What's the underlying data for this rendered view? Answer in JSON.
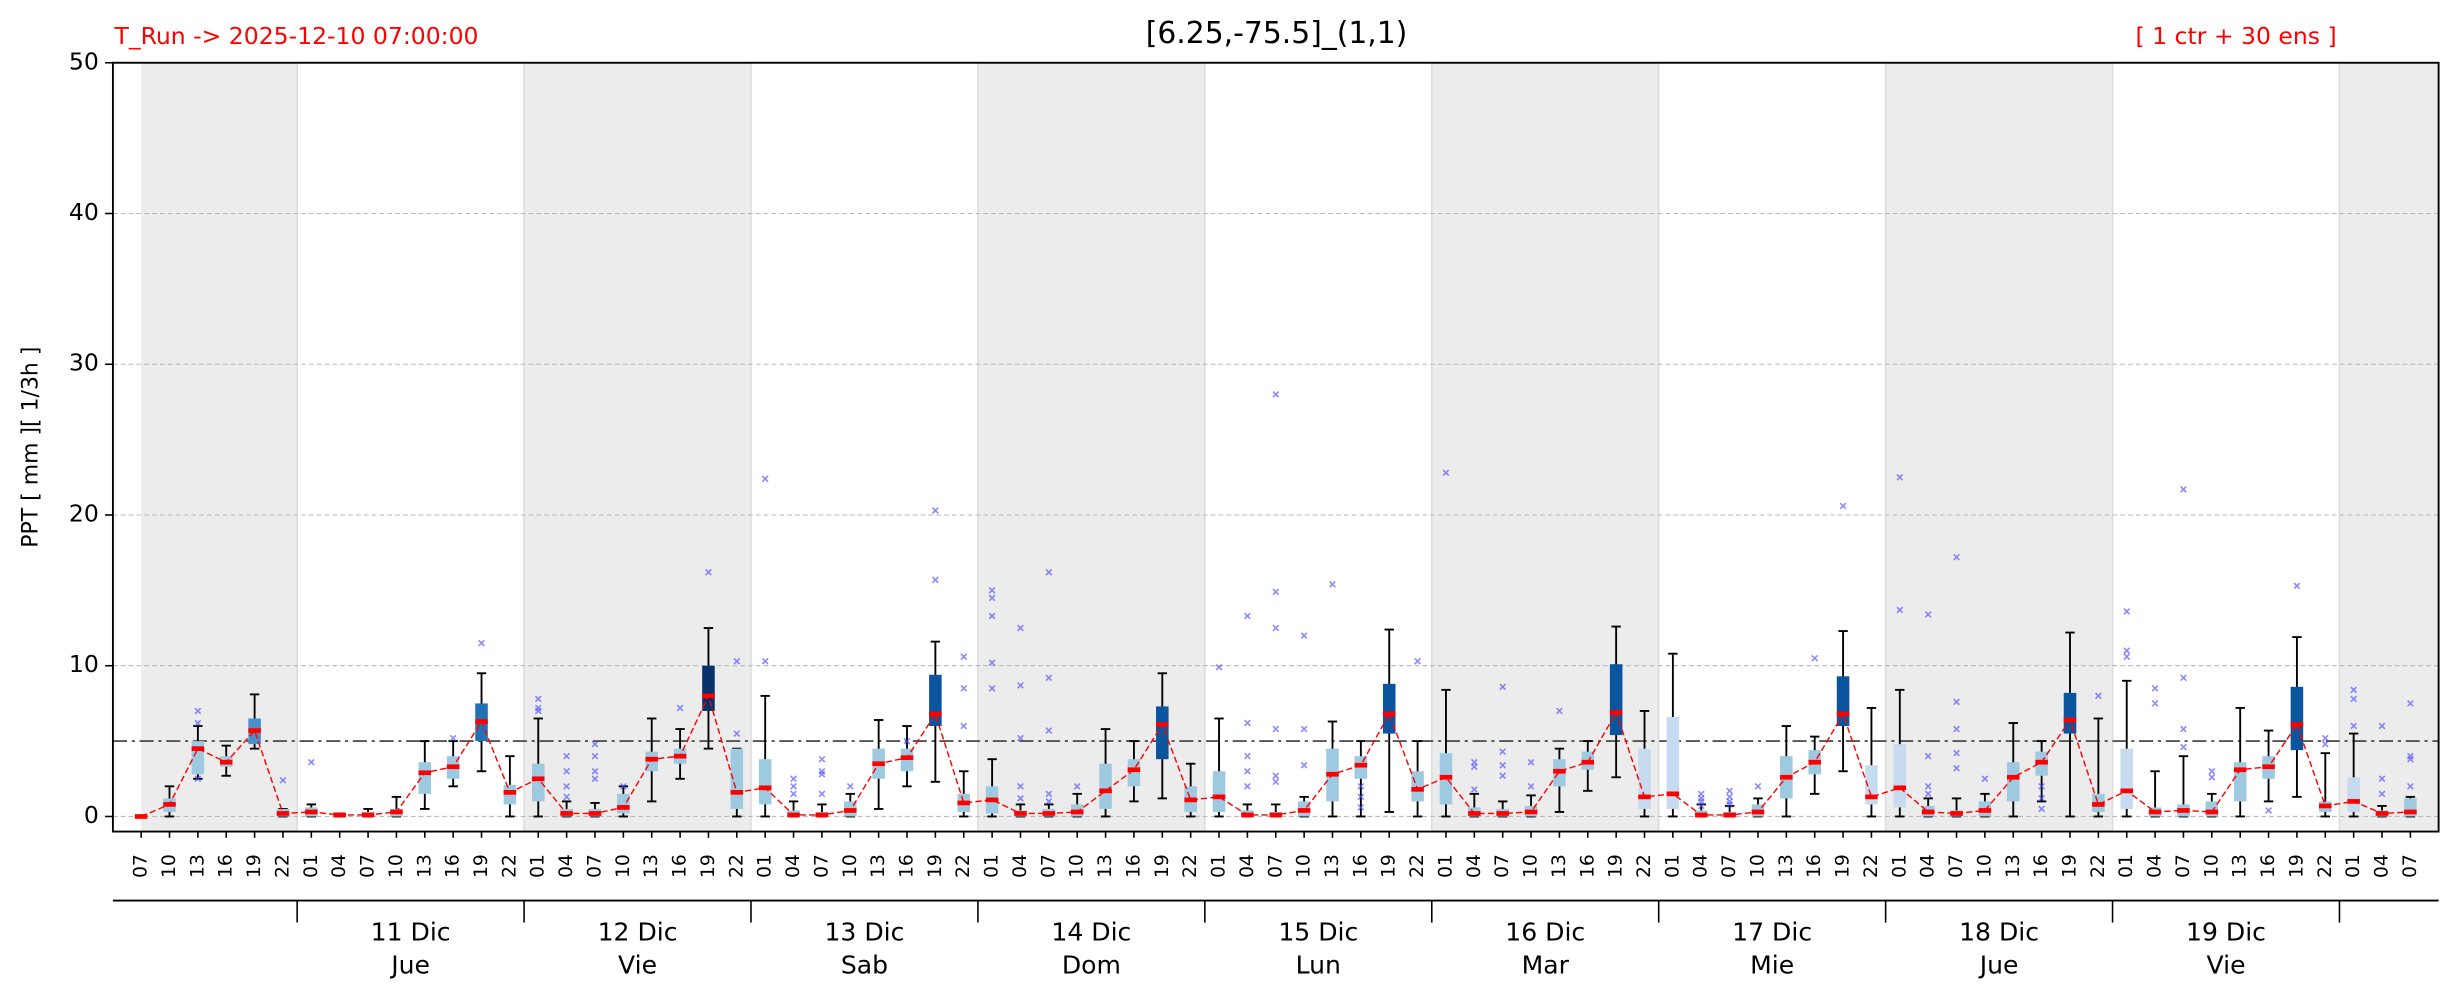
{
  "chart_data": {
    "type": "boxplot",
    "title": "[6.25,-75.5]_(1,1)",
    "run_label": "T_Run -> 2025-12-10  07:00:00",
    "members_label": "[ 1 ctr + 30 ens ]",
    "y_label": "PPT  [ mm ][ 1/3h ]",
    "ylim": [
      -1,
      50
    ],
    "yticks": [
      0,
      10,
      20,
      30,
      40,
      50
    ],
    "grid": true,
    "threshold": 5,
    "shade_alternate_days": true,
    "categories": [
      "07",
      "10",
      "13",
      "16",
      "19",
      "22",
      "01",
      "04",
      "07",
      "10",
      "13",
      "16",
      "19",
      "22",
      "01",
      "04",
      "07",
      "10",
      "13",
      "16",
      "19",
      "22",
      "01",
      "04",
      "07",
      "10",
      "13",
      "16",
      "19",
      "22",
      "01",
      "04",
      "07",
      "10",
      "13",
      "16",
      "19",
      "22",
      "01",
      "04",
      "07",
      "10",
      "13",
      "16",
      "19",
      "22",
      "01",
      "04",
      "07",
      "10",
      "13",
      "16",
      "19",
      "22",
      "01",
      "04",
      "07",
      "10",
      "13",
      "16",
      "19",
      "22",
      "01",
      "04",
      "07",
      "10",
      "13",
      "16",
      "19",
      "22",
      "01",
      "04",
      "07",
      "10",
      "13",
      "16",
      "19",
      "22",
      "01",
      "04",
      "07"
    ],
    "day_labels": [
      null,
      {
        "date": "11 Dic",
        "weekday": "Jue"
      },
      {
        "date": "12 Dic",
        "weekday": "Vie"
      },
      {
        "date": "13 Dic",
        "weekday": "Sab"
      },
      {
        "date": "14 Dic",
        "weekday": "Dom"
      },
      {
        "date": "15 Dic",
        "weekday": "Lun"
      },
      {
        "date": "16 Dic",
        "weekday": "Mar"
      },
      {
        "date": "17 Dic",
        "weekday": "Mie"
      },
      {
        "date": "18 Dic",
        "weekday": "Jue"
      },
      {
        "date": "19 Dic",
        "weekday": "Vie"
      },
      null
    ],
    "low": [
      0,
      0,
      2.5,
      2.7,
      4.5,
      0,
      0,
      0,
      0,
      0,
      0.5,
      2,
      3,
      0,
      0,
      0,
      0,
      0,
      1,
      2.5,
      4.5,
      0,
      0,
      0,
      0,
      0,
      0.5,
      2,
      2.3,
      0,
      0,
      0,
      0,
      0,
      0,
      1,
      1.2,
      0,
      0,
      0,
      0,
      0,
      0,
      0,
      0.3,
      0,
      0,
      0,
      0,
      0,
      0.3,
      1.7,
      2.6,
      0,
      0,
      0,
      0,
      0,
      0,
      1.5,
      3,
      0,
      0,
      0,
      0,
      0,
      0,
      1,
      0,
      0,
      0,
      0,
      0,
      0,
      0,
      1,
      1.3,
      0,
      0,
      0,
      0
    ],
    "q1": [
      0,
      0.3,
      2.8,
      3.3,
      4.8,
      0,
      0,
      0,
      0,
      0,
      1.5,
      2.5,
      5,
      0.8,
      1,
      0,
      0,
      0.2,
      3,
      3.5,
      7,
      0.5,
      0.8,
      0,
      0,
      0,
      2.5,
      3,
      6,
      0.3,
      0.2,
      0,
      0,
      0,
      0.5,
      2,
      3.8,
      0.3,
      0.3,
      0,
      0,
      0,
      1,
      2.5,
      5.5,
      1,
      0.8,
      0,
      0,
      0,
      2,
      3.1,
      5.4,
      0.5,
      0.5,
      0,
      0,
      0,
      1.2,
      2.8,
      6,
      0.8,
      0.6,
      0,
      0,
      0,
      1,
      2.7,
      5.5,
      0.3,
      0.5,
      0,
      0,
      0,
      1,
      2.5,
      4.4,
      0.3,
      0.3,
      0,
      0
    ],
    "median": [
      0,
      0.8,
      4.5,
      3.6,
      5.7,
      0.2,
      0.3,
      0.1,
      0.1,
      0.3,
      2.9,
      3.3,
      6.3,
      1.6,
      2.5,
      0.2,
      0.2,
      0.6,
      3.8,
      4,
      8,
      1.6,
      1.9,
      0.1,
      0.1,
      0.4,
      3.5,
      3.9,
      6.8,
      0.9,
      1.1,
      0.2,
      0.2,
      0.3,
      1.7,
      3.1,
      6.1,
      1.1,
      1.3,
      0.1,
      0.1,
      0.4,
      2.8,
      3.4,
      6.8,
      1.8,
      2.6,
      0.2,
      0.2,
      0.3,
      3,
      3.6,
      6.9,
      1.3,
      1.5,
      0.1,
      0.1,
      0.3,
      2.6,
      3.6,
      6.8,
      1.3,
      1.9,
      0.3,
      0.2,
      0.4,
      2.6,
      3.6,
      6.4,
      0.8,
      1.7,
      0.3,
      0.4,
      0.3,
      3.1,
      3.3,
      6.1,
      0.7,
      1,
      0.2,
      0.3
    ],
    "q3": [
      0,
      1.2,
      5,
      4,
      6.5,
      0.5,
      0.6,
      0.2,
      0.3,
      0.5,
      3.6,
      4,
      7.5,
      2.1,
      3.5,
      0.5,
      0.5,
      1.5,
      4.3,
      4.5,
      10,
      4.5,
      3.8,
      0.4,
      0.3,
      1,
      4.5,
      4.5,
      9.4,
      1.5,
      2,
      0.4,
      0.5,
      0.8,
      3.5,
      3.8,
      7.3,
      2,
      3,
      0.4,
      0.3,
      1,
      4.5,
      4,
      8.8,
      3,
      4.2,
      0.6,
      0.5,
      0.7,
      3.8,
      4.3,
      10.1,
      4.5,
      6.6,
      0.4,
      0.3,
      0.8,
      4,
      4.4,
      9.3,
      3.4,
      4.8,
      0.7,
      0.4,
      1,
      3.6,
      4.3,
      8.2,
      1.5,
      4.5,
      0.6,
      0.8,
      1,
      3.6,
      4,
      8.6,
      1,
      2.6,
      0.4,
      1.2
    ],
    "high": [
      0,
      2,
      6,
      4.7,
      8.1,
      0.5,
      0.8,
      0.2,
      0.5,
      1.3,
      5,
      5,
      9.5,
      4,
      6.5,
      1,
      0.9,
      2,
      6.5,
      5.8,
      12.5,
      4.5,
      8,
      1,
      0.8,
      1.5,
      6.4,
      6,
      11.6,
      3,
      3.8,
      0.8,
      0.8,
      1.5,
      5.8,
      5,
      9.5,
      3.5,
      6.5,
      0.8,
      0.8,
      1.3,
      6.3,
      5,
      12.4,
      5,
      8.4,
      1.5,
      1,
      1.4,
      4.5,
      5,
      12.6,
      7,
      10.8,
      0.8,
      0.7,
      1.2,
      6,
      5.3,
      12.3,
      7.2,
      8.4,
      1.2,
      1.2,
      1.5,
      6.2,
      5,
      12.2,
      6.5,
      9,
      3,
      4,
      1.5,
      7.2,
      5.7,
      11.9,
      4.2,
      5.5,
      0.7,
      1.3
    ],
    "outliers": [
      [],
      [],
      [
        7,
        6.2,
        2.5
      ],
      [],
      [],
      [
        2.4
      ],
      [
        3.6
      ],
      [],
      [],
      [],
      [],
      [
        5.2
      ],
      [
        11.5
      ],
      [],
      [
        7.8,
        7.2,
        7
      ],
      [
        4,
        3,
        2,
        1.3
      ],
      [
        4.8,
        4,
        3,
        2.5
      ],
      [
        2
      ],
      [],
      [
        7.2
      ],
      [
        16.2
      ],
      [
        10.3,
        5.5
      ],
      [
        22.4,
        10.3
      ],
      [
        2.5,
        2,
        1.5
      ],
      [
        3.8,
        3,
        2.8,
        1.5
      ],
      [
        2
      ],
      [],
      [
        5
      ],
      [
        20.3,
        15.7
      ],
      [
        10.6,
        8.5,
        6
      ],
      [
        15,
        14.5,
        13.3,
        10.2,
        8.5
      ],
      [
        12.5,
        8.7,
        5.2,
        2,
        1.2
      ],
      [
        16.2,
        9.2,
        5.7,
        1.5,
        1
      ],
      [
        2
      ],
      [],
      [],
      [],
      [],
      [
        9.9
      ],
      [
        13.3,
        6.2,
        4,
        3,
        2
      ],
      [
        28,
        14.9,
        12.5,
        5.8,
        2.7,
        2.3
      ],
      [
        12,
        5.8,
        3.4
      ],
      [
        15.4
      ],
      [
        2,
        1.3,
        0.6
      ],
      [],
      [
        10.3
      ],
      [
        22.8
      ],
      [
        3.6,
        3.3,
        1.8
      ],
      [
        8.6,
        4.3,
        3.4,
        2.7
      ],
      [
        3.6,
        2
      ],
      [
        7
      ],
      [],
      [],
      [],
      [],
      [
        1.5,
        1.2,
        1,
        0.7
      ],
      [
        1.7,
        1.3,
        1,
        0.8
      ],
      [
        2
      ],
      [],
      [
        10.5
      ],
      [
        20.6
      ],
      [],
      [
        22.5,
        13.7
      ],
      [
        13.4,
        4,
        2,
        1.5
      ],
      [
        17.2,
        7.6,
        5.8,
        4.2,
        3.2
      ],
      [
        2.5
      ],
      [],
      [
        2,
        1.2,
        0.5
      ],
      [],
      [
        8
      ],
      [
        13.6,
        11,
        10.6
      ],
      [
        8.5,
        7.5
      ],
      [
        21.7,
        9.2,
        5.8,
        4.6
      ],
      [
        3,
        2.6
      ],
      [],
      [
        0.4
      ],
      [
        15.3
      ],
      [
        5.2,
        4.8
      ],
      [
        8.4,
        7.8,
        6
      ],
      [
        6,
        2.5,
        1.5
      ],
      [
        7.5,
        4,
        3.8,
        2
      ]
    ],
    "box_colors": [
      "#9ecae1",
      "#9ecae1",
      "#9ecae1",
      "#9ecae1",
      "#4a90c8",
      "#9ecae1",
      "#9ecae1",
      "#9ecae1",
      "#9ecae1",
      "#9ecae1",
      "#9ecae1",
      "#9ecae1",
      "#2171b5",
      "#9ecae1",
      "#9ecae1",
      "#9ecae1",
      "#9ecae1",
      "#9ecae1",
      "#9ecae1",
      "#9ecae1",
      "#08306b",
      "#9ecae1",
      "#9ecae1",
      "#9ecae1",
      "#9ecae1",
      "#9ecae1",
      "#9ecae1",
      "#9ecae1",
      "#0b559f",
      "#9ecae1",
      "#9ecae1",
      "#9ecae1",
      "#9ecae1",
      "#9ecae1",
      "#9ecae1",
      "#9ecae1",
      "#0b559f",
      "#9ecae1",
      "#9ecae1",
      "#9ecae1",
      "#9ecae1",
      "#9ecae1",
      "#9ecae1",
      "#9ecae1",
      "#0b559f",
      "#9ecae1",
      "#9ecae1",
      "#9ecae1",
      "#9ecae1",
      "#9ecae1",
      "#9ecae1",
      "#9ecae1",
      "#0b559f",
      "#c6dbef",
      "#c6dbef",
      "#9ecae1",
      "#9ecae1",
      "#9ecae1",
      "#9ecae1",
      "#9ecae1",
      "#0b559f",
      "#c6dbef",
      "#c6dbef",
      "#9ecae1",
      "#9ecae1",
      "#9ecae1",
      "#9ecae1",
      "#9ecae1",
      "#0b559f",
      "#9ecae1",
      "#c6dbef",
      "#9ecae1",
      "#9ecae1",
      "#9ecae1",
      "#9ecae1",
      "#9ecae1",
      "#0b559f",
      "#9ecae1",
      "#c6dbef",
      "#9ecae1",
      "#9ecae1"
    ],
    "median_color": "#ff0000",
    "outlier_color": "#4a4aff"
  }
}
